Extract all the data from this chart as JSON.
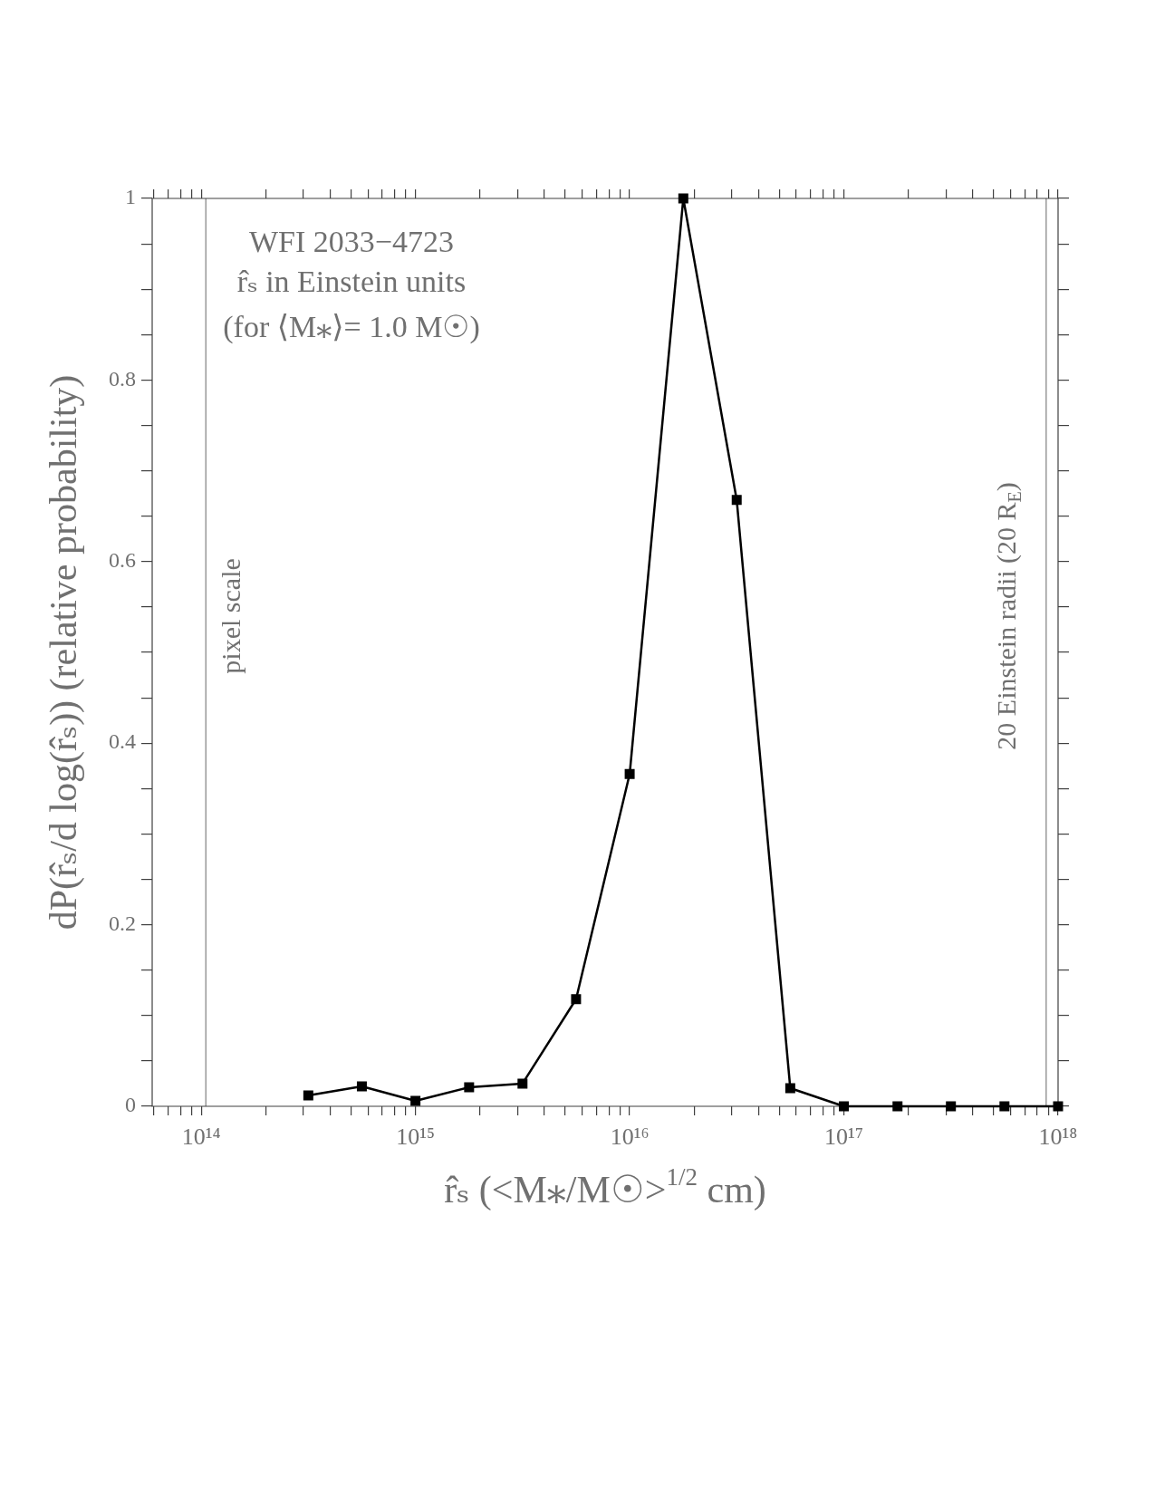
{
  "chart_data": {
    "type": "line",
    "title": "WFI 2033−4723",
    "subtitle": "r̂ₛ in Einstein units\n(for ⟨M⁎⟩= 1.0 M☉)",
    "xlabel": "r̂ₛ (<M⁎/M☉>$^{1/2}$ cm)",
    "ylabel": "dP(r̂ₛ/d log(r̂ₛ)) (relative probability)",
    "x": [
      316000000000000.0,
      562000000000000.0,
      1000000000000000.0,
      1780000000000000.0,
      3160000000000000.0,
      5620000000000000.0,
      1e+16,
      1.78e+16,
      3.16e+16,
      5.62e+16,
      1e+17,
      1.78e+17,
      3.16e+17,
      5.62e+17,
      1e+18
    ],
    "series": [
      {
        "color": "#000000",
        "values": [
          0.012,
          0.022,
          0.006,
          0.021,
          0.025,
          0.118,
          0.366,
          1.0,
          0.668,
          0.02,
          0,
          0,
          0,
          0,
          0
        ]
      }
    ],
    "log": "x",
    "marker": "square",
    "line_style": "solid",
    "grid": false,
    "legend": false,
    "xlim": [
      59000000000000.0,
      1e+18
    ],
    "xticks": [
      {
        "value": 60000000000000.0,
        "label": null
      },
      {
        "value": 70000000000000.0,
        "label": null
      },
      {
        "value": 80000000000000.0,
        "label": null
      },
      {
        "value": 90000000000000.0,
        "label": null
      },
      {
        "value": 100000000000000.0,
        "label": "10¹⁴"
      },
      {
        "value": 200000000000000.0,
        "label": null
      },
      {
        "value": 300000000000000.0,
        "label": null
      },
      {
        "value": 400000000000000.0,
        "label": null
      },
      {
        "value": 500000000000000.0,
        "label": null
      },
      {
        "value": 600000000000000.0,
        "label": null
      },
      {
        "value": 700000000000000.0,
        "label": null
      },
      {
        "value": 800000000000000.0,
        "label": null
      },
      {
        "value": 900000000000000.0,
        "label": null
      },
      {
        "value": 1000000000000000.0,
        "label": "10¹⁵"
      },
      {
        "value": 2000000000000000.0,
        "label": null
      },
      {
        "value": 3000000000000000.0,
        "label": null
      },
      {
        "value": 4000000000000000.0,
        "label": null
      },
      {
        "value": 5000000000000000.0,
        "label": null
      },
      {
        "value": 6000000000000000.0,
        "label": null
      },
      {
        "value": 7000000000000000.0,
        "label": null
      },
      {
        "value": 8000000000000000.0,
        "label": null
      },
      {
        "value": 9000000000000000.0,
        "label": null
      },
      {
        "value": 1e+16,
        "label": "10¹⁶"
      },
      {
        "value": 2e+16,
        "label": null
      },
      {
        "value": 3e+16,
        "label": null
      },
      {
        "value": 4e+16,
        "label": null
      },
      {
        "value": 5e+16,
        "label": null
      },
      {
        "value": 6e+16,
        "label": null
      },
      {
        "value": 7e+16,
        "label": null
      },
      {
        "value": 8e+16,
        "label": null
      },
      {
        "value": 9e+16,
        "label": null
      },
      {
        "value": 1e+17,
        "label": "10¹⁷"
      },
      {
        "value": 2e+17,
        "label": null
      },
      {
        "value": 3e+17,
        "label": null
      },
      {
        "value": 4e+17,
        "label": null
      },
      {
        "value": 5e+17,
        "label": null
      },
      {
        "value": 6e+17,
        "label": null
      },
      {
        "value": 7e+17,
        "label": null
      },
      {
        "value": 8e+17,
        "label": null
      },
      {
        "value": 9e+17,
        "label": null
      },
      {
        "value": 1e+18,
        "label": "10¹⁸"
      }
    ],
    "ylim": [
      0,
      1
    ],
    "yticks": [
      0,
      {
        "value": 0.05,
        "label": null
      },
      {
        "value": 0.1,
        "label": null
      },
      {
        "value": 0.15,
        "label": null
      },
      0.2,
      {
        "value": 0.25,
        "label": null
      },
      {
        "value": 0.3,
        "label": null
      },
      {
        "value": 0.35,
        "label": null
      },
      0.4,
      {
        "value": 0.45,
        "label": null
      },
      {
        "value": 0.5,
        "label": null
      },
      {
        "value": 0.55,
        "label": null
      },
      0.6,
      {
        "value": 0.65,
        "label": null
      },
      {
        "value": 0.7,
        "label": null
      },
      {
        "value": 0.75,
        "label": null
      },
      0.8,
      {
        "value": 0.85,
        "label": null
      },
      {
        "value": 0.9,
        "label": null
      },
      {
        "value": 0.95,
        "label": null
      },
      1
    ],
    "ref_lines": [
      {
        "axis": "x",
        "value": 105000000000000.0,
        "label": "pixel scale",
        "color": "#808080"
      },
      {
        "axis": "x",
        "value": 8.8e+17,
        "label": "20 Einstein radii (20 R$_{E}$)",
        "color": "#808080"
      }
    ]
  }
}
